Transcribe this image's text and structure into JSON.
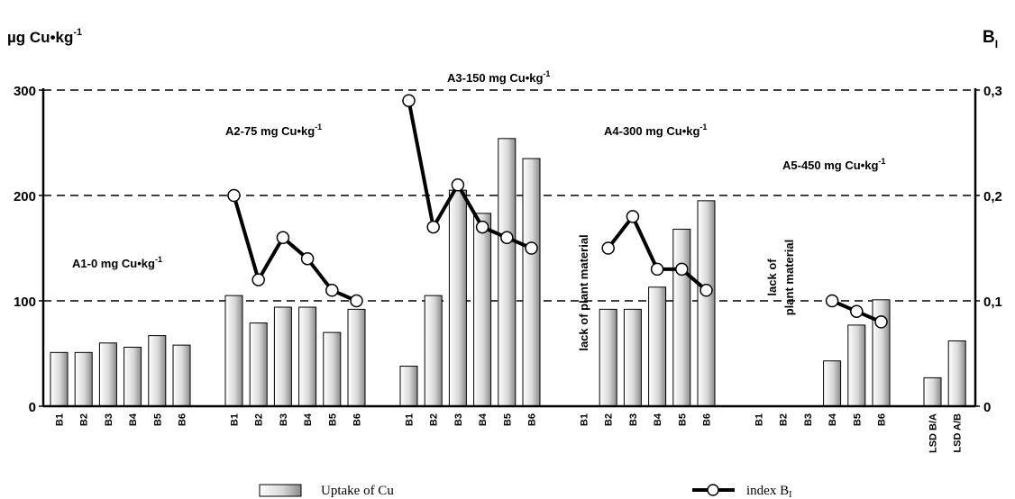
{
  "chart_data": {
    "type": "bar",
    "ylabel_left": "µg Cu•kg",
    "ylabel_left_sup": "-1",
    "ylabel_right": "B",
    "ylabel_right_sub": "I",
    "ylim_left": [
      0,
      300
    ],
    "ylim_right": [
      0,
      0.3
    ],
    "yticks_left": [
      "0",
      "100",
      "200",
      "300"
    ],
    "yticks_right": [
      "0",
      "0,1",
      "0,2",
      "0,3"
    ],
    "grid": "dashed horizontal at 100, 200, 300",
    "groups": [
      {
        "label": "A1-0 mg Cu•kg",
        "sup": "-1",
        "categories": [
          "B1",
          "B2",
          "B3",
          "B4",
          "B5",
          "B6"
        ],
        "uptake": [
          51,
          51,
          60,
          56,
          67,
          58
        ],
        "index": [
          null,
          null,
          null,
          null,
          null,
          null
        ]
      },
      {
        "label": "A2-75 mg Cu•kg",
        "sup": "-1",
        "categories": [
          "B1",
          "B2",
          "B3",
          "B4",
          "B5",
          "B6"
        ],
        "uptake": [
          105,
          79,
          94,
          94,
          70,
          92
        ],
        "index": [
          0.2,
          0.12,
          0.16,
          0.14,
          0.11,
          0.1
        ]
      },
      {
        "label": "A3-150 mg Cu•kg",
        "sup": "-1",
        "categories": [
          "B1",
          "B2",
          "B3",
          "B4",
          "B5",
          "B6"
        ],
        "uptake": [
          38,
          105,
          205,
          183,
          254,
          235
        ],
        "index": [
          0.29,
          0.17,
          0.21,
          0.17,
          0.16,
          0.15
        ]
      },
      {
        "label": "A4-300 mg Cu•kg",
        "sup": "-1",
        "categories": [
          "B1",
          "B2",
          "B3",
          "B4",
          "B5",
          "B6"
        ],
        "uptake": [
          null,
          92,
          92,
          113,
          168,
          195
        ],
        "index": [
          null,
          0.15,
          0.18,
          0.13,
          0.13,
          0.11
        ]
      },
      {
        "label": "A5-450 mg Cu•kg",
        "sup": "-1",
        "categories": [
          "B1",
          "B2",
          "B3",
          "B4",
          "B5",
          "B6"
        ],
        "uptake": [
          null,
          null,
          null,
          43,
          77,
          101
        ],
        "index": [
          null,
          null,
          null,
          0.1,
          0.09,
          0.08
        ]
      },
      {
        "label": "",
        "categories": [
          "LSD B/A",
          "LSD A/B"
        ],
        "uptake": [
          27,
          62
        ],
        "index": [
          null,
          null
        ]
      }
    ],
    "annotations": {
      "a4_note": "lack of plant material",
      "a5_note_line1": "lack of",
      "a5_note_line2": "plant material"
    },
    "legend": {
      "bars": "Uptake of Cu",
      "line": "index B",
      "line_sub": "I",
      "placement": "bottom"
    },
    "colors": {
      "bar_light": "#ffffff",
      "bar_dark": "#8a8a8a",
      "line": "#000000"
    }
  }
}
